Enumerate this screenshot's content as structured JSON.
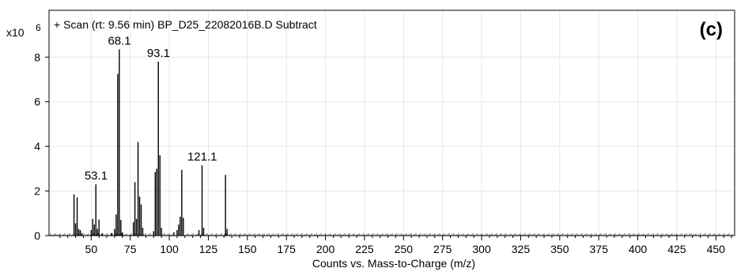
{
  "chart_data": {
    "type": "bar",
    "title": "+ Scan (rt: 9.56 min) BP_D25_22082016B.D  Subtract",
    "panel_label": "(c)",
    "y_multiplier": "x10",
    "y_exponent": "6",
    "xlabel": "Counts vs. Mass-to-Charge (m/z)",
    "ylabel": "",
    "xlim": [
      23,
      462
    ],
    "ylim": [
      0,
      10.1
    ],
    "x_ticks": [
      50,
      75,
      100,
      125,
      150,
      175,
      200,
      225,
      250,
      275,
      300,
      325,
      350,
      375,
      400,
      425,
      450
    ],
    "x_tick_labels": [
      "50",
      "75",
      "100",
      "125",
      "150",
      "175",
      "200",
      "225",
      "250",
      "275",
      "300",
      "325",
      "350",
      "375",
      "400",
      "425",
      "450"
    ],
    "y_ticks": [
      0,
      2,
      4,
      6,
      8
    ],
    "y_tick_labels": [
      "0",
      "2",
      "4",
      "6",
      "8"
    ],
    "grid": true,
    "series": [
      {
        "x": [
          39,
          40,
          41,
          42,
          43,
          44,
          50,
          51,
          52,
          53,
          54,
          55,
          57,
          63,
          65,
          66,
          67,
          68,
          69,
          70,
          77,
          78,
          79,
          80,
          81,
          82,
          83,
          90,
          91,
          92,
          93,
          94,
          95,
          103,
          105,
          106,
          107,
          108,
          109,
          119,
          121,
          122,
          136,
          137
        ],
        "values": [
          1.85,
          0.55,
          1.72,
          0.3,
          0.25,
          0.12,
          0.25,
          0.75,
          0.5,
          2.3,
          0.3,
          0.72,
          0.1,
          0.12,
          0.3,
          0.95,
          7.25,
          8.35,
          0.7,
          0.15,
          0.6,
          2.4,
          0.75,
          4.2,
          1.75,
          1.4,
          0.35,
          0.2,
          2.85,
          3.0,
          7.8,
          3.6,
          0.35,
          0.15,
          0.25,
          0.5,
          0.85,
          2.95,
          0.8,
          0.25,
          3.15,
          0.35,
          2.72,
          0.3
        ]
      }
    ],
    "annotations": [
      {
        "text": "53.1",
        "x": 53.1,
        "y": 2.3
      },
      {
        "text": "68.1",
        "x": 68.1,
        "y": 8.35
      },
      {
        "text": "93.1",
        "x": 93.1,
        "y": 7.8
      },
      {
        "text": "121.1",
        "x": 121.1,
        "y": 3.15
      }
    ]
  }
}
